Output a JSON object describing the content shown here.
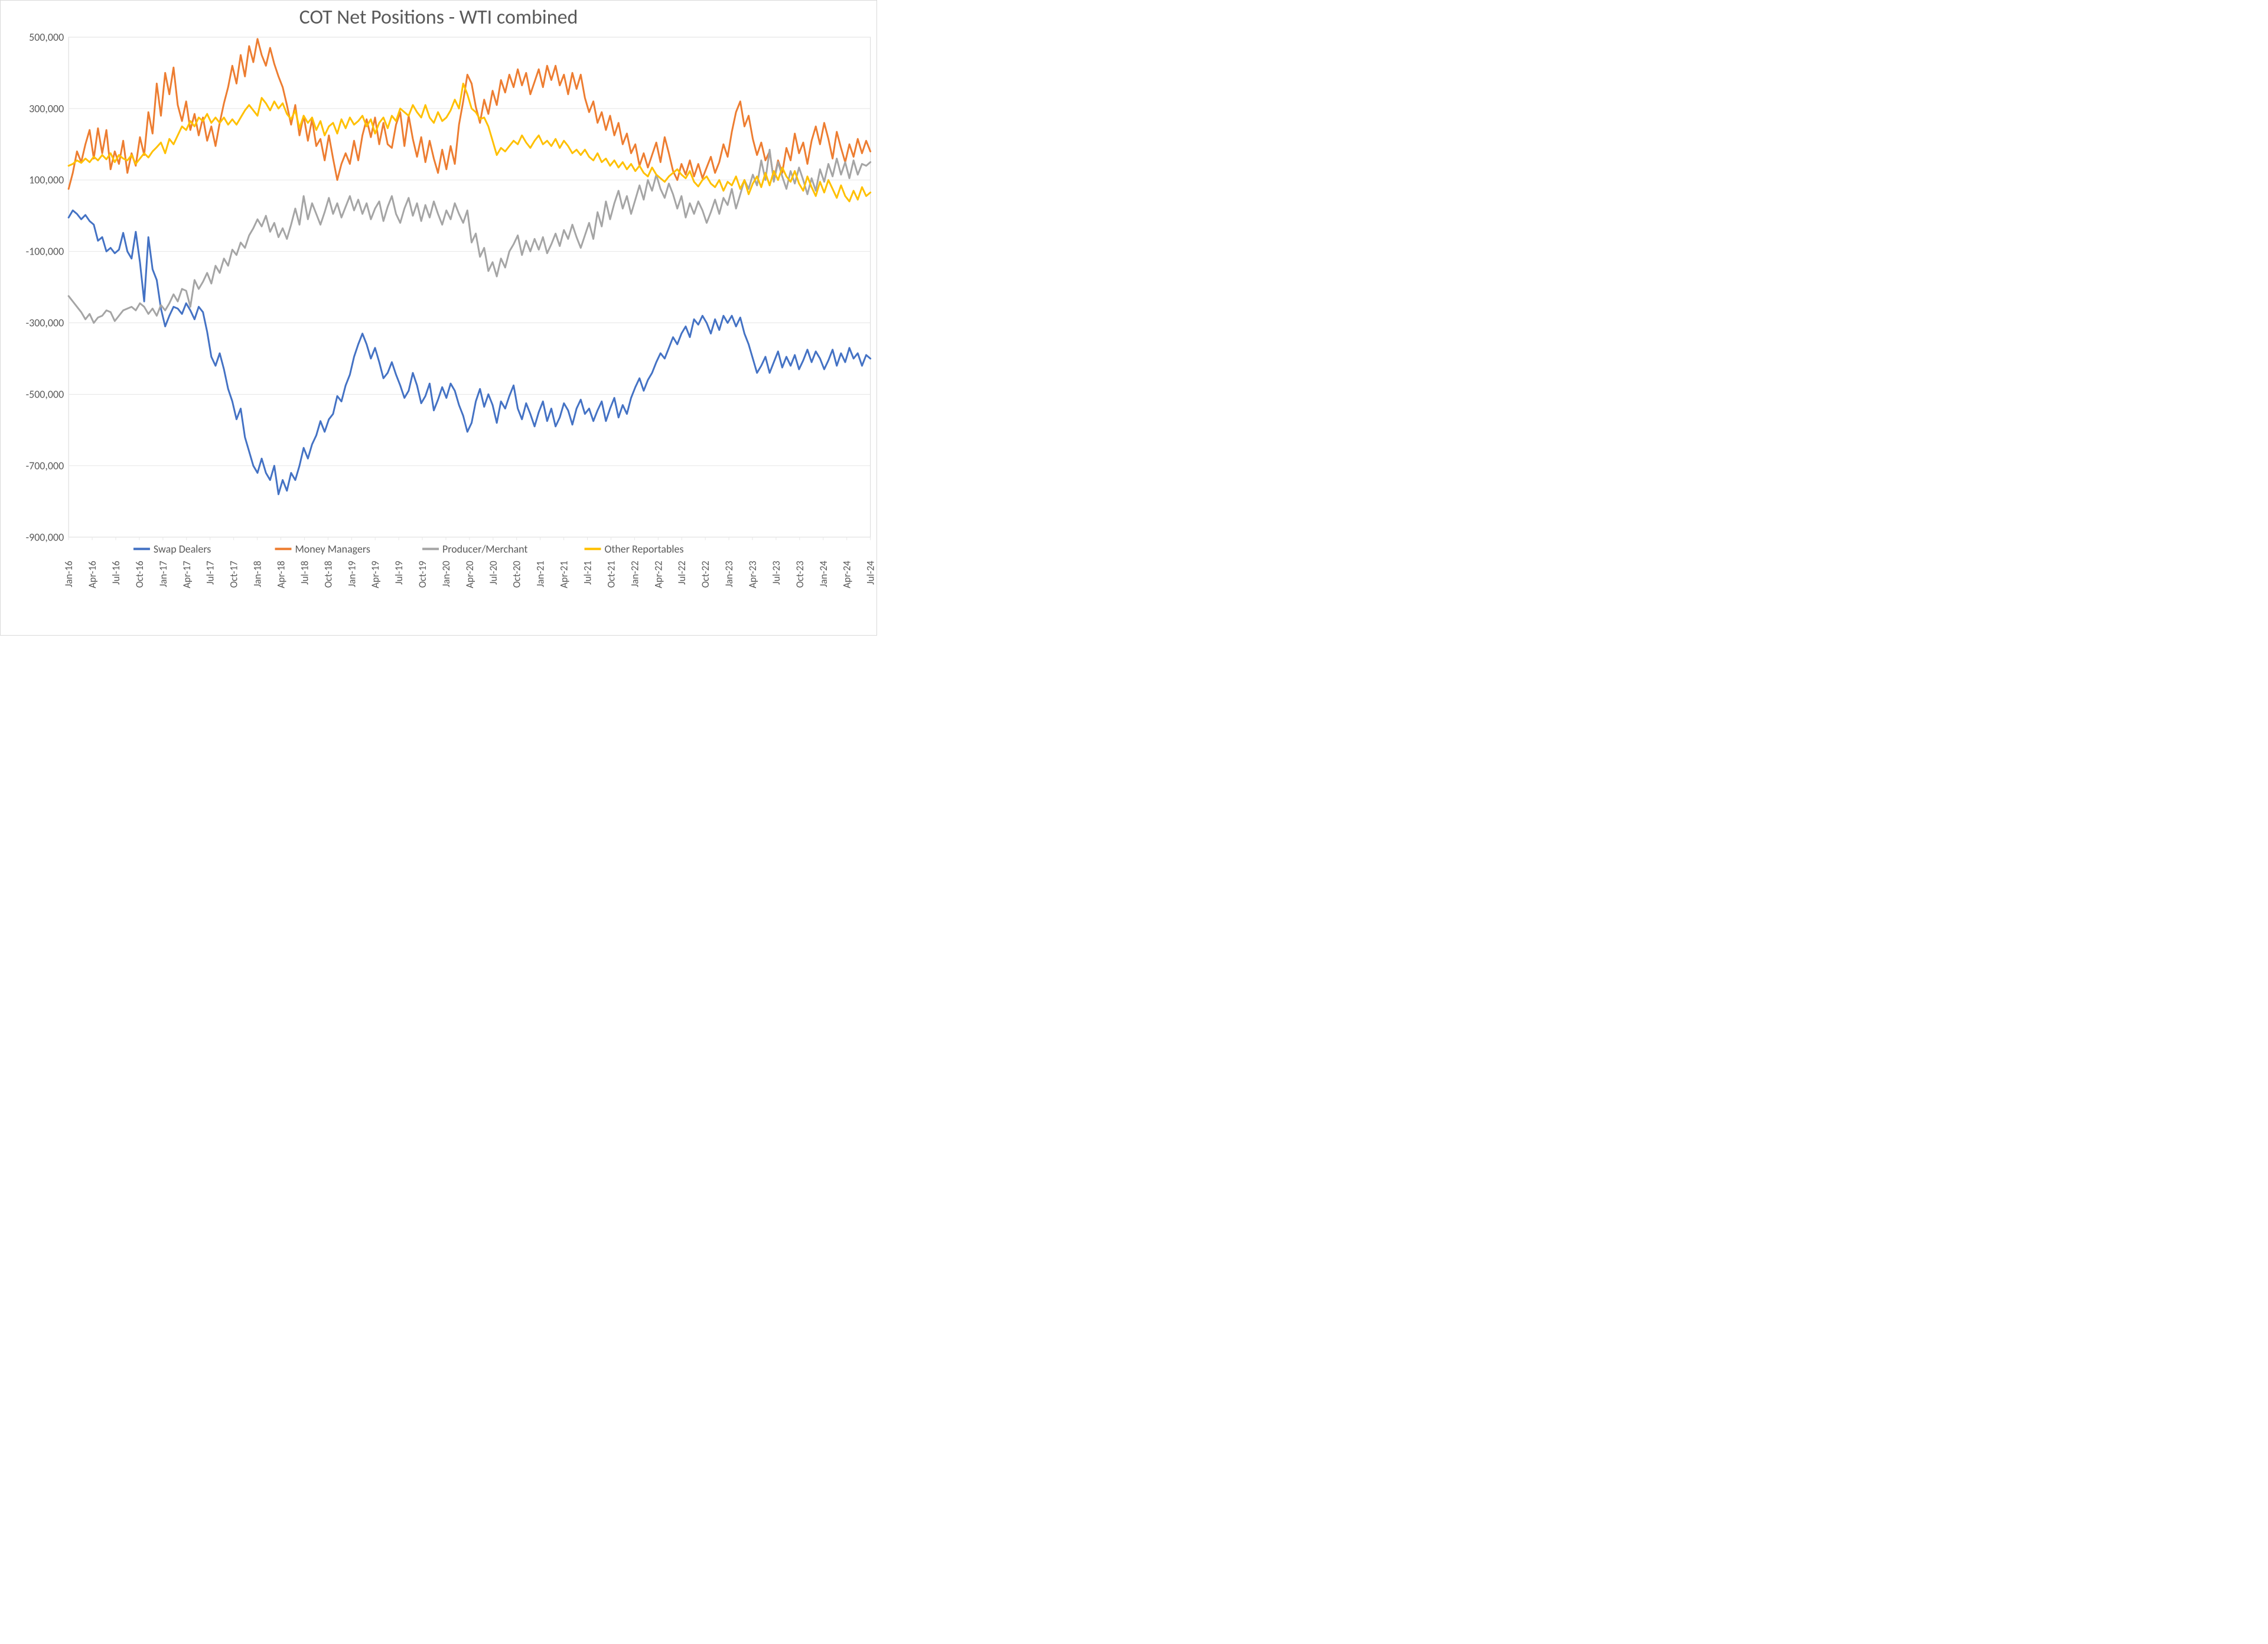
{
  "chart": {
    "type": "line",
    "title": "COT Net Positions - WTI combined",
    "title_fontsize": 34,
    "title_color": "#595959",
    "background_color": "#ffffff",
    "border_color": "#d9d9d9",
    "plot_background": "#ffffff",
    "grid_color": "#e6e6e6",
    "zero_line_color": "#bfbfbf",
    "line_width": 3,
    "legend": {
      "position": "bottom",
      "fontsize": 18,
      "items": [
        {
          "label": "Swap Dealers",
          "color": "#4472c4"
        },
        {
          "label": "Money Managers",
          "color": "#ed7d31"
        },
        {
          "label": "Producer/Merchant",
          "color": "#a5a5a5"
        },
        {
          "label": "Other Reportables",
          "color": "#ffc000"
        }
      ]
    },
    "y_axis": {
      "min": -900000,
      "max": 500000,
      "tick_step": 200000,
      "ticks": [
        500000,
        300000,
        100000,
        -100000,
        -300000,
        -500000,
        -700000,
        -900000
      ],
      "tick_labels": [
        "500,000",
        "300,000",
        "100,000",
        "-100,000",
        "-300,000",
        "-500,000",
        "-700,000",
        "-900,000"
      ],
      "fontsize": 18,
      "label_color": "#595959"
    },
    "x_axis": {
      "labels": [
        "Jan-16",
        "Apr-16",
        "Jul-16",
        "Oct-16",
        "Jan-17",
        "Apr-17",
        "Jul-17",
        "Oct-17",
        "Jan-18",
        "Apr-18",
        "Jul-18",
        "Oct-18",
        "Jan-19",
        "Apr-19",
        "Jul-19",
        "Oct-19",
        "Jan-20",
        "Apr-20",
        "Jul-20",
        "Oct-20",
        "Jan-21",
        "Apr-21",
        "Jul-21",
        "Oct-21",
        "Jan-22",
        "Apr-22",
        "Jul-22",
        "Oct-22",
        "Jan-23",
        "Apr-23",
        "Jul-23",
        "Oct-23",
        "Jan-24",
        "Apr-24",
        "Jul-24"
      ],
      "fontsize": 17,
      "rotation": -90,
      "label_color": "#595959"
    },
    "series": [
      {
        "name": "Swap Dealers",
        "color": "#4472c4",
        "values": [
          -5000,
          15000,
          5000,
          -10000,
          2000,
          -15000,
          -25000,
          -70000,
          -60000,
          -100000,
          -90000,
          -105000,
          -95000,
          -48000,
          -100000,
          -120000,
          -45000,
          -130000,
          -240000,
          -60000,
          -150000,
          -180000,
          -260000,
          -310000,
          -280000,
          -255000,
          -260000,
          -275000,
          -245000,
          -265000,
          -290000,
          -255000,
          -270000,
          -325000,
          -395000,
          -420000,
          -385000,
          -430000,
          -485000,
          -520000,
          -570000,
          -540000,
          -620000,
          -660000,
          -700000,
          -720000,
          -680000,
          -720000,
          -740000,
          -700000,
          -780000,
          -740000,
          -770000,
          -720000,
          -740000,
          -700000,
          -650000,
          -680000,
          -640000,
          -615000,
          -575000,
          -605000,
          -570000,
          -555000,
          -505000,
          -520000,
          -475000,
          -445000,
          -395000,
          -360000,
          -330000,
          -360000,
          -400000,
          -370000,
          -410000,
          -455000,
          -440000,
          -410000,
          -445000,
          -475000,
          -510000,
          -490000,
          -440000,
          -475000,
          -525000,
          -505000,
          -470000,
          -545000,
          -515000,
          -480000,
          -510000,
          -470000,
          -490000,
          -530000,
          -560000,
          -605000,
          -580000,
          -520000,
          -485000,
          -535000,
          -500000,
          -530000,
          -580000,
          -520000,
          -540000,
          -505000,
          -475000,
          -540000,
          -570000,
          -525000,
          -555000,
          -590000,
          -550000,
          -520000,
          -575000,
          -540000,
          -590000,
          -565000,
          -525000,
          -545000,
          -585000,
          -540000,
          -515000,
          -555000,
          -540000,
          -575000,
          -545000,
          -520000,
          -575000,
          -540000,
          -510000,
          -565000,
          -530000,
          -555000,
          -510000,
          -480000,
          -455000,
          -490000,
          -460000,
          -440000,
          -410000,
          -385000,
          -400000,
          -370000,
          -340000,
          -360000,
          -330000,
          -310000,
          -340000,
          -290000,
          -305000,
          -280000,
          -300000,
          -330000,
          -290000,
          -320000,
          -280000,
          -300000,
          -280000,
          -310000,
          -285000,
          -330000,
          -360000,
          -400000,
          -440000,
          -420000,
          -395000,
          -440000,
          -410000,
          -380000,
          -425000,
          -395000,
          -420000,
          -390000,
          -430000,
          -405000,
          -375000,
          -410000,
          -380000,
          -400000,
          -430000,
          -405000,
          -375000,
          -420000,
          -385000,
          -410000,
          -370000,
          -400000,
          -385000,
          -420000,
          -390000,
          -400000
        ]
      },
      {
        "name": "Money Managers",
        "color": "#ed7d31",
        "values": [
          75000,
          120000,
          180000,
          150000,
          200000,
          240000,
          160000,
          245000,
          175000,
          240000,
          130000,
          180000,
          145000,
          210000,
          120000,
          175000,
          140000,
          220000,
          170000,
          290000,
          230000,
          370000,
          280000,
          400000,
          340000,
          415000,
          310000,
          265000,
          320000,
          240000,
          285000,
          225000,
          275000,
          210000,
          250000,
          195000,
          260000,
          315000,
          360000,
          420000,
          370000,
          450000,
          390000,
          475000,
          430000,
          495000,
          450000,
          420000,
          470000,
          425000,
          390000,
          360000,
          310000,
          255000,
          310000,
          225000,
          280000,
          210000,
          270000,
          195000,
          215000,
          155000,
          225000,
          160000,
          100000,
          145000,
          175000,
          145000,
          210000,
          155000,
          225000,
          270000,
          220000,
          275000,
          200000,
          260000,
          200000,
          190000,
          255000,
          290000,
          195000,
          280000,
          215000,
          165000,
          220000,
          150000,
          210000,
          160000,
          120000,
          185000,
          130000,
          195000,
          145000,
          255000,
          320000,
          395000,
          370000,
          305000,
          260000,
          325000,
          285000,
          350000,
          310000,
          380000,
          345000,
          395000,
          360000,
          410000,
          365000,
          400000,
          340000,
          375000,
          410000,
          360000,
          420000,
          380000,
          420000,
          365000,
          395000,
          340000,
          400000,
          355000,
          395000,
          330000,
          290000,
          320000,
          260000,
          290000,
          240000,
          280000,
          225000,
          260000,
          200000,
          230000,
          175000,
          200000,
          140000,
          175000,
          135000,
          170000,
          205000,
          150000,
          220000,
          175000,
          125000,
          100000,
          145000,
          115000,
          155000,
          110000,
          145000,
          105000,
          135000,
          165000,
          120000,
          150000,
          200000,
          165000,
          235000,
          290000,
          320000,
          250000,
          280000,
          215000,
          170000,
          205000,
          155000,
          180000,
          100000,
          155000,
          120000,
          190000,
          155000,
          230000,
          175000,
          205000,
          145000,
          210000,
          250000,
          200000,
          260000,
          215000,
          160000,
          235000,
          190000,
          150000,
          200000,
          165000,
          215000,
          175000,
          210000,
          180000
        ]
      },
      {
        "name": "Producer/Merchant",
        "color": "#a5a5a5",
        "values": [
          -225000,
          -240000,
          -255000,
          -270000,
          -290000,
          -275000,
          -300000,
          -285000,
          -280000,
          -265000,
          -270000,
          -295000,
          -280000,
          -265000,
          -260000,
          -255000,
          -265000,
          -245000,
          -255000,
          -275000,
          -260000,
          -280000,
          -250000,
          -265000,
          -245000,
          -220000,
          -240000,
          -205000,
          -210000,
          -255000,
          -180000,
          -205000,
          -185000,
          -160000,
          -190000,
          -140000,
          -160000,
          -120000,
          -140000,
          -95000,
          -110000,
          -75000,
          -90000,
          -55000,
          -35000,
          -10000,
          -30000,
          0,
          -45000,
          -20000,
          -60000,
          -35000,
          -65000,
          -25000,
          20000,
          -25000,
          55000,
          -10000,
          35000,
          5000,
          -25000,
          10000,
          50000,
          5000,
          35000,
          -5000,
          25000,
          55000,
          15000,
          45000,
          5000,
          35000,
          -10000,
          20000,
          40000,
          -15000,
          25000,
          55000,
          5000,
          -20000,
          20000,
          50000,
          0,
          35000,
          -15000,
          30000,
          -5000,
          40000,
          5000,
          -25000,
          15000,
          -10000,
          35000,
          5000,
          -20000,
          15000,
          -75000,
          -50000,
          -115000,
          -90000,
          -155000,
          -130000,
          -170000,
          -120000,
          -145000,
          -100000,
          -80000,
          -55000,
          -110000,
          -70000,
          -100000,
          -65000,
          -95000,
          -60000,
          -105000,
          -80000,
          -50000,
          -85000,
          -40000,
          -65000,
          -25000,
          -60000,
          -90000,
          -55000,
          -20000,
          -65000,
          10000,
          -30000,
          40000,
          -10000,
          35000,
          70000,
          20000,
          55000,
          5000,
          45000,
          85000,
          45000,
          100000,
          70000,
          115000,
          75000,
          50000,
          90000,
          60000,
          20000,
          55000,
          -5000,
          35000,
          5000,
          40000,
          15000,
          -20000,
          10000,
          45000,
          5000,
          50000,
          30000,
          75000,
          20000,
          60000,
          100000,
          75000,
          115000,
          85000,
          155000,
          100000,
          185000,
          95000,
          150000,
          110000,
          75000,
          125000,
          90000,
          135000,
          100000,
          60000,
          105000,
          70000,
          130000,
          95000,
          145000,
          110000,
          160000,
          115000,
          150000,
          105000,
          155000,
          115000,
          145000,
          140000,
          150000
        ]
      },
      {
        "name": "Other Reportables",
        "color": "#ffc000",
        "values": [
          140000,
          145000,
          155000,
          148000,
          160000,
          150000,
          165000,
          155000,
          170000,
          158000,
          175000,
          150000,
          170000,
          160000,
          155000,
          170000,
          145000,
          160000,
          175000,
          163000,
          180000,
          192000,
          205000,
          175000,
          215000,
          200000,
          225000,
          250000,
          240000,
          265000,
          250000,
          275000,
          265000,
          285000,
          260000,
          275000,
          260000,
          275000,
          255000,
          270000,
          255000,
          275000,
          295000,
          310000,
          295000,
          280000,
          330000,
          315000,
          295000,
          320000,
          300000,
          315000,
          285000,
          270000,
          295000,
          245000,
          280000,
          260000,
          275000,
          240000,
          265000,
          225000,
          250000,
          260000,
          230000,
          270000,
          245000,
          275000,
          255000,
          265000,
          280000,
          250000,
          270000,
          230000,
          260000,
          275000,
          245000,
          280000,
          265000,
          300000,
          290000,
          280000,
          310000,
          290000,
          275000,
          310000,
          275000,
          260000,
          290000,
          265000,
          275000,
          295000,
          325000,
          300000,
          370000,
          340000,
          300000,
          290000,
          270000,
          275000,
          250000,
          210000,
          170000,
          190000,
          180000,
          195000,
          210000,
          200000,
          225000,
          205000,
          190000,
          210000,
          225000,
          200000,
          210000,
          195000,
          215000,
          190000,
          210000,
          195000,
          175000,
          185000,
          170000,
          185000,
          165000,
          155000,
          175000,
          150000,
          160000,
          140000,
          155000,
          135000,
          150000,
          130000,
          145000,
          125000,
          140000,
          120000,
          110000,
          135000,
          115000,
          105000,
          95000,
          110000,
          120000,
          130000,
          115000,
          105000,
          125000,
          95000,
          82000,
          100000,
          110000,
          90000,
          80000,
          100000,
          70000,
          95000,
          85000,
          110000,
          75000,
          100000,
          60000,
          90000,
          110000,
          80000,
          120000,
          85000,
          125000,
          100000,
          135000,
          110000,
          95000,
          125000,
          90000,
          70000,
          110000,
          80000,
          55000,
          95000,
          65000,
          100000,
          75000,
          50000,
          85000,
          55000,
          40000,
          70000,
          45000,
          80000,
          55000,
          65000
        ]
      }
    ]
  }
}
